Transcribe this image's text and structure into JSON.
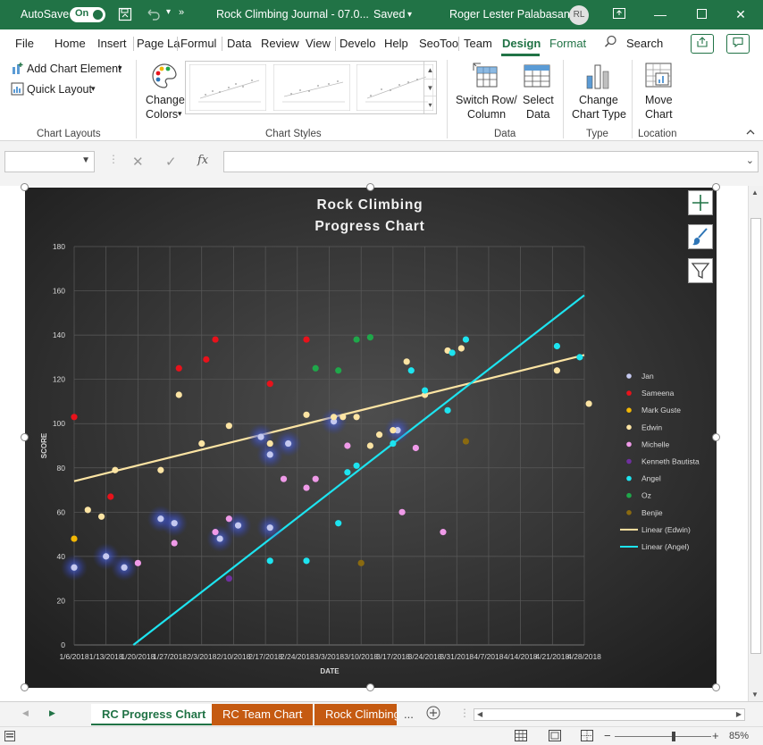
{
  "titlebar": {
    "autosave_label": "AutoSave",
    "autosave_state": "On",
    "doc_title": "Rock Climbing Journal - 07.0...",
    "save_state": "Saved",
    "user_name": "Roger Lester Palabasan",
    "user_initials": "RL",
    "color": "#217346"
  },
  "menu": {
    "items": [
      "File",
      "Home",
      "Insert",
      "Page La",
      "Formul",
      "Data",
      "Review",
      "View",
      "Develo",
      "Help",
      "SeoToo",
      "Team",
      "Design",
      "Format"
    ],
    "active": "Design",
    "search_label": "Search"
  },
  "ribbon": {
    "add_chart_element": "Add Chart Element",
    "quick_layout": "Quick Layout",
    "change_colors_l1": "Change",
    "change_colors_l2": "Colors",
    "switch_row_l1": "Switch Row/",
    "switch_row_l2": "Column",
    "select_data_l1": "Select",
    "select_data_l2": "Data",
    "change_type_l1": "Change",
    "change_type_l2": "Chart Type",
    "move_chart_l1": "Move",
    "move_chart_l2": "Chart",
    "groups": {
      "chart_layouts": "Chart Layouts",
      "chart_styles": "Chart Styles",
      "data": "Data",
      "type": "Type",
      "location": "Location"
    }
  },
  "formula_bar": {
    "name_box": "",
    "fx_label": "fx",
    "formula": ""
  },
  "chart_data": {
    "type": "scatter",
    "title_line1": "Rock Climbing",
    "title_line2": "Progress Chart",
    "xlabel": "DATE",
    "ylabel": "SCORE",
    "ylim": [
      0,
      180
    ],
    "yticks": [
      0,
      20,
      40,
      60,
      80,
      100,
      120,
      140,
      160,
      180
    ],
    "xlim": [
      "2018-01-06",
      "2018-04-28"
    ],
    "xtick_labels": [
      "1/6/2018",
      "1/13/2018",
      "1/20/2018",
      "1/27/2018",
      "2/3/2018",
      "2/10/2018",
      "2/17/2018",
      "2/24/2018",
      "3/3/2018",
      "3/10/2018",
      "3/17/2018",
      "3/24/2018",
      "3/31/2018",
      "4/7/2018",
      "4/14/2018",
      "4/21/2018",
      "4/28/2018"
    ],
    "grid": true,
    "legend_position": "right",
    "series": [
      {
        "name": "Jan",
        "color": "#c5c9f0",
        "glow": true,
        "points": [
          [
            "2018-01-06",
            35
          ],
          [
            "2018-01-13",
            40
          ],
          [
            "2018-01-17",
            35
          ],
          [
            "2018-01-25",
            57
          ],
          [
            "2018-01-28",
            55
          ],
          [
            "2018-02-07",
            48
          ],
          [
            "2018-02-11",
            54
          ],
          [
            "2018-02-16",
            94
          ],
          [
            "2018-02-18",
            86
          ],
          [
            "2018-02-18",
            53
          ],
          [
            "2018-02-22",
            91
          ],
          [
            "2018-03-04",
            101
          ],
          [
            "2018-03-18",
            97
          ]
        ]
      },
      {
        "name": "Sameena",
        "color": "#e8121b",
        "points": [
          [
            "2018-01-06",
            103
          ],
          [
            "2018-01-14",
            67
          ],
          [
            "2018-01-29",
            125
          ],
          [
            "2018-02-04",
            129
          ],
          [
            "2018-02-06",
            138
          ],
          [
            "2018-02-18",
            118
          ],
          [
            "2018-02-26",
            138
          ]
        ]
      },
      {
        "name": "Mark Guste",
        "color": "#f2b705",
        "points": [
          [
            "2018-01-06",
            48
          ]
        ]
      },
      {
        "name": "Edwin",
        "color": "#fce4a3",
        "points": [
          [
            "2018-01-09",
            61
          ],
          [
            "2018-01-12",
            58
          ],
          [
            "2018-01-15",
            79
          ],
          [
            "2018-01-25",
            79
          ],
          [
            "2018-01-29",
            113
          ],
          [
            "2018-02-03",
            91
          ],
          [
            "2018-02-09",
            99
          ],
          [
            "2018-02-18",
            91
          ],
          [
            "2018-02-26",
            104
          ],
          [
            "2018-03-04",
            103
          ],
          [
            "2018-03-06",
            103
          ],
          [
            "2018-03-09",
            103
          ],
          [
            "2018-03-12",
            90
          ],
          [
            "2018-03-14",
            95
          ],
          [
            "2018-03-17",
            97
          ],
          [
            "2018-03-20",
            128
          ],
          [
            "2018-03-24",
            113
          ],
          [
            "2018-03-29",
            133
          ],
          [
            "2018-04-01",
            134
          ],
          [
            "2018-04-22",
            124
          ],
          [
            "2018-04-29",
            109
          ]
        ]
      },
      {
        "name": "Michelle",
        "color": "#ef9ae8",
        "points": [
          [
            "2018-01-20",
            37
          ],
          [
            "2018-01-28",
            46
          ],
          [
            "2018-02-06",
            51
          ],
          [
            "2018-02-09",
            57
          ],
          [
            "2018-02-21",
            75
          ],
          [
            "2018-02-26",
            71
          ],
          [
            "2018-02-28",
            75
          ],
          [
            "2018-03-07",
            90
          ],
          [
            "2018-03-19",
            60
          ],
          [
            "2018-03-22",
            89
          ],
          [
            "2018-03-28",
            51
          ]
        ]
      },
      {
        "name": "Kenneth Bautista",
        "color": "#7030a0",
        "points": [
          [
            "2018-02-09",
            30
          ]
        ]
      },
      {
        "name": "Angel",
        "color": "#1de4f0",
        "points": [
          [
            "2018-02-18",
            38
          ],
          [
            "2018-02-26",
            38
          ],
          [
            "2018-03-05",
            55
          ],
          [
            "2018-03-07",
            78
          ],
          [
            "2018-03-09",
            81
          ],
          [
            "2018-03-17",
            91
          ],
          [
            "2018-03-21",
            124
          ],
          [
            "2018-03-24",
            115
          ],
          [
            "2018-03-29",
            106
          ],
          [
            "2018-03-30",
            132
          ],
          [
            "2018-04-02",
            138
          ],
          [
            "2018-04-22",
            135
          ],
          [
            "2018-04-27",
            130
          ]
        ]
      },
      {
        "name": "Oz",
        "color": "#1fa74a",
        "points": [
          [
            "2018-02-28",
            125
          ],
          [
            "2018-03-05",
            124
          ],
          [
            "2018-03-09",
            138
          ],
          [
            "2018-03-12",
            139
          ]
        ]
      },
      {
        "name": "Benjie",
        "color": "#8a6a10",
        "points": [
          [
            "2018-03-10",
            37
          ],
          [
            "2018-04-02",
            92
          ]
        ]
      }
    ],
    "trendlines": [
      {
        "name": "Linear (Edwin)",
        "color": "#fce4a3",
        "from": [
          "2018-01-06",
          74
        ],
        "to": [
          "2018-04-28",
          131
        ]
      },
      {
        "name": "Linear (Angel)",
        "color": "#1de4f0",
        "from": [
          "2018-01-19",
          0
        ],
        "to": [
          "2018-04-28",
          158
        ]
      }
    ]
  },
  "sheet_tabs": [
    "RC Progress Chart",
    "RC Team Chart",
    "Rock Climbing"
  ],
  "sheet_tab_more": "...",
  "status": {
    "zoom": "85%"
  }
}
